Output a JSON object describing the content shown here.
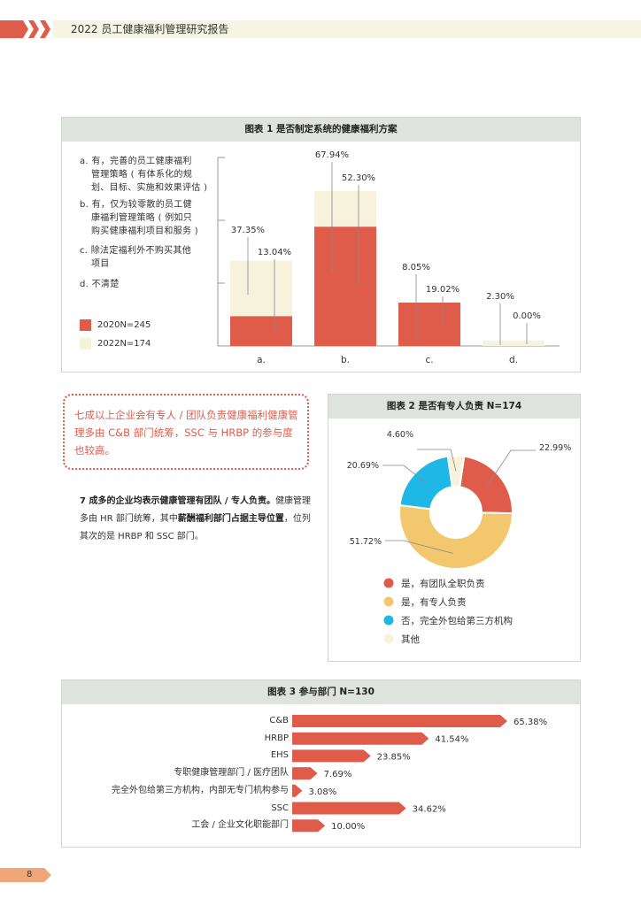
{
  "header": {
    "title": "2022 员工健康福利管理研究报告"
  },
  "colors": {
    "accent": "#e05c4a",
    "cream": "#f6f2dc",
    "yellow": "#f2c76d",
    "blue": "#1fb8e6",
    "gray_head": "#dfe3dd"
  },
  "chart_data": [
    {
      "type": "bar",
      "title": "图表 1 是否制定系统的健康福利方案",
      "categories": [
        "a.",
        "b.",
        "c.",
        "d."
      ],
      "category_descriptions": [
        [
          "a. 有，完善的员工健康福利",
          "管理策略 ( 有体系化的规",
          "划、目标、实施和效果评估 )"
        ],
        [
          "b. 有，仅为较零散的员工健",
          "康福利管理策略 ( 例如只",
          "购买健康福利项目和服务 )"
        ],
        [
          "c. 除法定福利外不购买其他",
          "项目"
        ],
        [
          "d. 不清楚"
        ]
      ],
      "series": [
        {
          "name": "2020N=245",
          "values": [
            13.04,
            52.3,
            19.02,
            0.0
          ],
          "labels": [
            "13.04%",
            "52.30%",
            "19.02%",
            "0.00%"
          ],
          "color": "#e05c4a"
        },
        {
          "name": "2022N=174",
          "values": [
            37.35,
            67.94,
            8.05,
            2.3
          ],
          "labels": [
            "37.35%",
            "67.94%",
            "8.05%",
            "2.30%"
          ],
          "color": "#f6f2dc"
        }
      ],
      "ylim": [
        0,
        80
      ]
    },
    {
      "type": "pie",
      "title": "图表 2 是否有专人负责 N=174",
      "categories": [
        "是，有团队全职负责",
        "是，有专人负责",
        "否，完全外包给第三方机构",
        "其他"
      ],
      "values": [
        22.99,
        51.72,
        20.69,
        4.6
      ],
      "labels": [
        "22.99%",
        "51.72%",
        "20.69%",
        "4.60%"
      ],
      "colors": [
        "#e05c4a",
        "#f2c76d",
        "#1fb8e6",
        "#f6f2dc"
      ]
    },
    {
      "type": "bar",
      "orientation": "horizontal",
      "title": "图表 3 参与部门 N=130",
      "categories": [
        "C&B",
        "HRBP",
        "EHS",
        "专职健康管理部门 / 医疗团队",
        "完全外包给第三方机构，内部无专门机构参与",
        "SSC",
        "工会 / 企业文化职能部门"
      ],
      "values": [
        65.38,
        41.54,
        23.85,
        7.69,
        3.08,
        34.62,
        10.0
      ],
      "labels": [
        "65.38%",
        "41.54%",
        "23.85%",
        "7.69%",
        "3.08%",
        "34.62%",
        "10.00%"
      ],
      "color": "#e05c4a",
      "xlim": [
        0,
        65.38
      ]
    }
  ],
  "callout": {
    "text": "七成以上企业会有专人 / 团队负责健康福利健康管理多由 C&B 部门统筹，SSC 与 HRBP 的参与度也较高。"
  },
  "paragraph": {
    "bold1": "7 成多的企业均表示健康管理有团队 / 专人负责。",
    "text1": "健康管理多由 HR 部门统筹，其中",
    "bold2": "薪酬福利部门占据主导位置",
    "text2": "，位列其次的是 HRBP 和 SSC 部门。"
  },
  "page_number": "8"
}
